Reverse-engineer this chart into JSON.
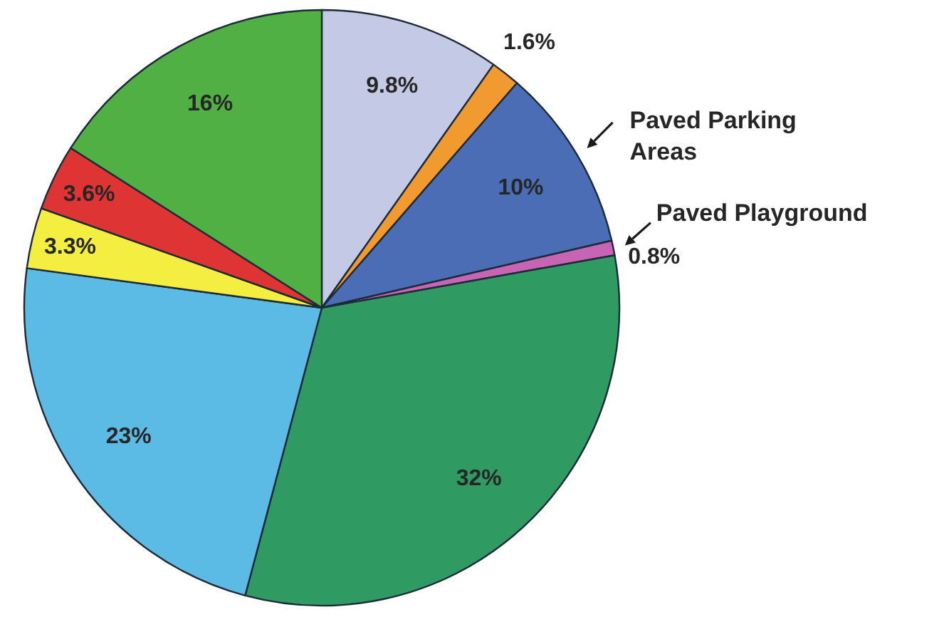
{
  "chart_data": {
    "type": "pie",
    "categories": [
      null,
      null,
      "Paved Parking Areas",
      "Paved Playground",
      null,
      null,
      null,
      null,
      null
    ],
    "values": [
      9.8,
      1.6,
      10,
      0.8,
      32,
      23,
      3.3,
      3.6,
      16
    ],
    "value_labels": [
      "9.8%",
      "1.6%",
      "10%",
      "0.8%",
      "32%",
      "23%",
      "3.3%",
      "3.6%",
      "16%"
    ],
    "colors": [
      "#c4c9e6",
      "#f09a30",
      "#4a6db5",
      "#c864b4",
      "#2f9a62",
      "#5bbbe4",
      "#f4ee40",
      "#df3434",
      "#50b044"
    ]
  }
}
